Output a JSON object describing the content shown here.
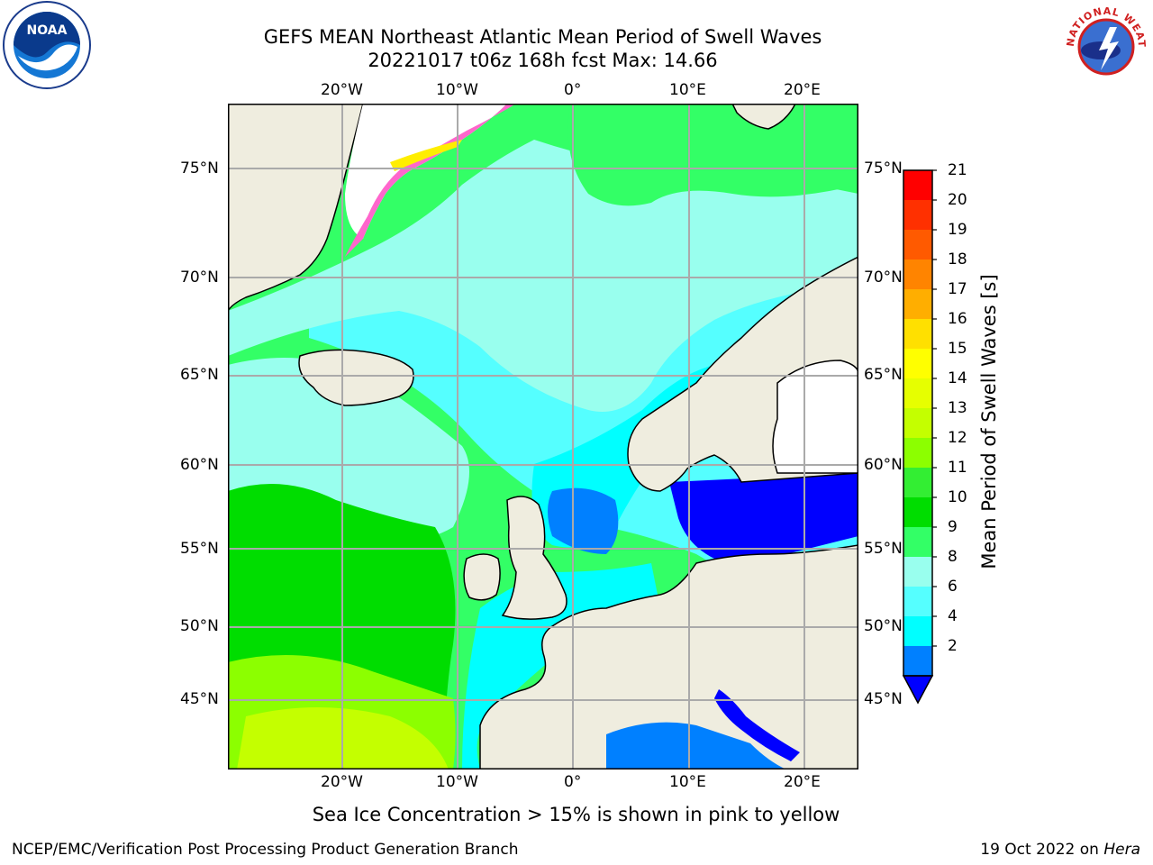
{
  "title": {
    "line1": "GEFS MEAN Northeast Atlantic Mean Period of Swell Waves",
    "line2": "20221017 t06z 168h fcst   Max: 14.66"
  },
  "map": {
    "lon_top_labels": [
      "20°W",
      "10°W",
      "0°",
      "10°E",
      "20°E"
    ],
    "lon_bottom_labels": [
      "20°W",
      "10°W",
      "0°",
      "10°E",
      "20°E"
    ],
    "lat_left_labels": [
      "75°N",
      "70°N",
      "65°N",
      "60°N",
      "55°N",
      "50°N",
      "45°N"
    ],
    "lat_right_labels": [
      "75°N",
      "70°N",
      "65°N",
      "60°N",
      "55°N",
      "50°N",
      "45°N"
    ],
    "land_color": "#efeddf",
    "ocean_default_color": "#33ff66"
  },
  "colorbar": {
    "label": "Mean Period of Swell Waves [s]",
    "ticks": [
      "21",
      "20",
      "19",
      "18",
      "17",
      "16",
      "15",
      "14",
      "13",
      "12",
      "11",
      "10",
      "9",
      "8",
      "6",
      "4",
      "2"
    ],
    "colors": [
      "#ff0000",
      "#ff3000",
      "#ff5a00",
      "#ff8400",
      "#ffae00",
      "#ffe000",
      "#ffff00",
      "#e6ff00",
      "#c4ff00",
      "#8cff00",
      "#33ee33",
      "#00dd00",
      "#33ff66",
      "#99ffee",
      "#55ffff",
      "#00ffff",
      "#0080ff"
    ],
    "extend_color": "#0000ff"
  },
  "note": "Sea Ice Concentration > 15% is shown in pink to yellow",
  "footer": {
    "left": "NCEP/EMC/Verification Post Processing Product Generation Branch",
    "right_date": "19 Oct 2022 on ",
    "right_host": "Hera"
  },
  "logos": {
    "noaa_text": "NOAA",
    "nws_text": "NATIONAL WEATHER SERVICE"
  }
}
